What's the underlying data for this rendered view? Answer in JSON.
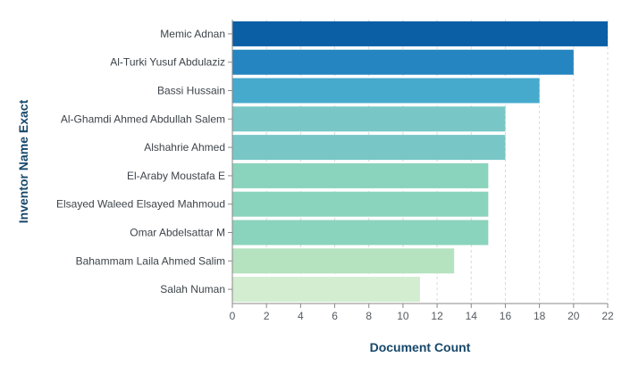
{
  "chart_data": {
    "type": "bar",
    "orientation": "horizontal",
    "xlabel": "Document Count",
    "ylabel": "Inventor Name Exact",
    "xlim": [
      0,
      22
    ],
    "xticks": [
      0,
      2,
      4,
      6,
      8,
      10,
      12,
      14,
      16,
      18,
      20,
      22
    ],
    "grid": true,
    "categories": [
      "Memic Adnan",
      "Al-Turki Yusuf Abdulaziz",
      "Bassi Hussain",
      "Al-Ghamdi Ahmed Abdullah Salem",
      "Alshahrie Ahmed",
      "El-Araby Moustafa E",
      "Elsayed Waleed Elsayed Mahmoud",
      "Omar Abdelsattar M",
      "Bahammam Laila Ahmed Salim",
      "Salah Numan"
    ],
    "values": [
      22,
      20,
      18,
      16,
      16,
      15,
      15,
      15,
      13,
      11
    ],
    "colors": [
      "#0b5fa5",
      "#2485c0",
      "#46aacd",
      "#78c7c6",
      "#78c7c6",
      "#8ad3bc",
      "#8ad3bc",
      "#8ad3bc",
      "#b5e2bf",
      "#d3edd0"
    ]
  }
}
